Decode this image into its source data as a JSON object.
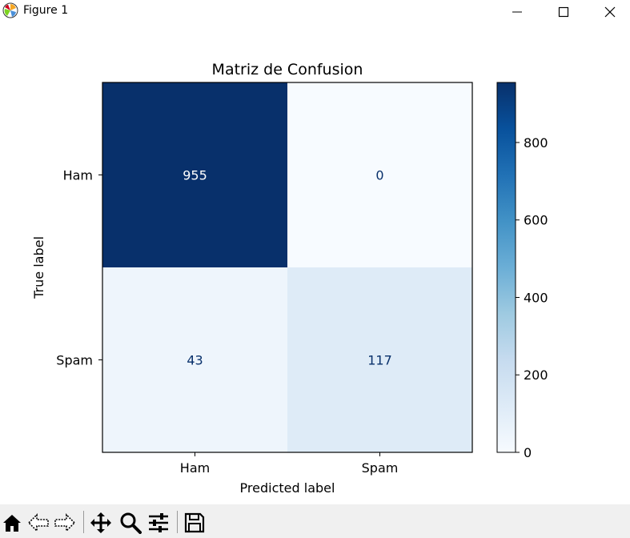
{
  "window": {
    "title": "Figure 1",
    "icons": [
      "matplotlib-logo-icon",
      "minimize-icon",
      "maximize-icon",
      "close-icon"
    ]
  },
  "toolbar": {
    "icons": [
      "home-icon",
      "back-icon",
      "forward-icon",
      "pan-icon",
      "zoom-icon",
      "configure-subplots-icon",
      "save-icon"
    ]
  },
  "chart_data": {
    "type": "heatmap",
    "title": "Matriz de Confusion",
    "xlabel": "Predicted label",
    "ylabel": "True label",
    "x_categories": [
      "Ham",
      "Spam"
    ],
    "y_categories": [
      "Ham",
      "Spam"
    ],
    "values": [
      [
        955,
        0
      ],
      [
        43,
        117
      ]
    ],
    "colormap": "Blues",
    "color_range": [
      0,
      955
    ],
    "colorbar_ticks": [
      0,
      200,
      400,
      600,
      800
    ],
    "colors": {
      "high": "#08306b",
      "low": "#f7fbff",
      "text_on_dark": "#ffffff",
      "text_on_light": "#08306b"
    }
  }
}
